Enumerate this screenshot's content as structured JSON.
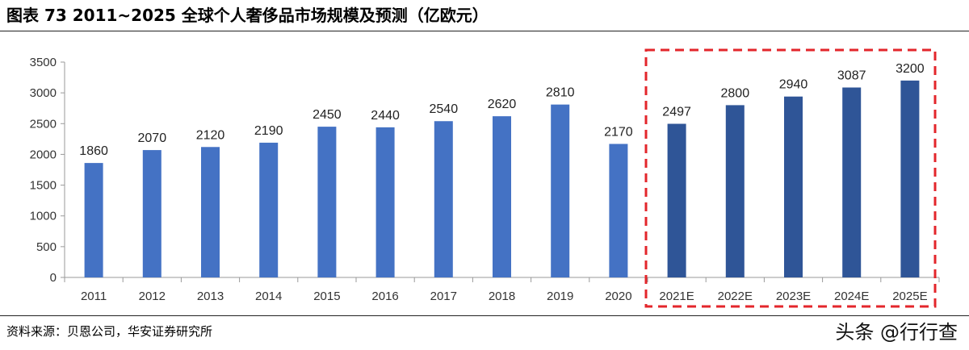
{
  "figure": {
    "title": "图表 73   2011~2025 全球个人奢侈品市场规模及预测（亿欧元）",
    "source": "资料来源：贝恩公司，华安证券研究所",
    "watermark": "头条 @行行查"
  },
  "chart_data": {
    "type": "bar",
    "categories": [
      "2011",
      "2012",
      "2013",
      "2014",
      "2015",
      "2016",
      "2017",
      "2018",
      "2019",
      "2020",
      "2021E",
      "2022E",
      "2023E",
      "2024E",
      "2025E"
    ],
    "values": [
      1860,
      2070,
      2120,
      2190,
      2450,
      2440,
      2540,
      2620,
      2810,
      2170,
      2497,
      2800,
      2940,
      3087,
      3200
    ],
    "forecast_start_index": 10,
    "ylim": [
      0,
      3500
    ],
    "yticks": [
      0,
      500,
      1000,
      1500,
      2000,
      2500,
      3000,
      3500
    ],
    "xlabel": "",
    "ylabel": "",
    "grid": false,
    "colors": {
      "actual": "#4472c4",
      "forecast": "#2f5597",
      "highlight_box": "#e3262b"
    }
  }
}
